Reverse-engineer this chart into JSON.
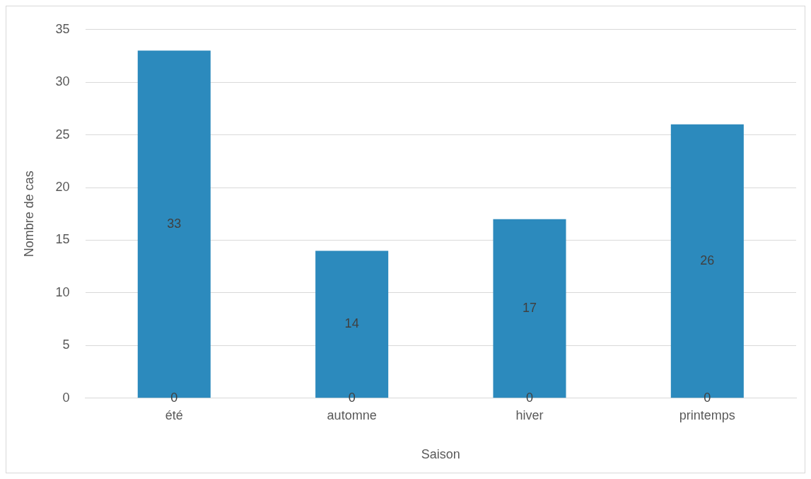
{
  "chart_data": {
    "type": "bar",
    "xlabel": "Saison",
    "ylabel": "Nombre de cas",
    "categories": [
      "été",
      "automne",
      "hiver",
      "printemps"
    ],
    "series": [
      {
        "color": "#0e80b5",
        "values": [
          0,
          0,
          0,
          0
        ]
      },
      {
        "color": "#2c8abd",
        "values": [
          33,
          14,
          17,
          26
        ]
      }
    ],
    "data_labels": true,
    "ylim": [
      0,
      35
    ],
    "yticks": [
      0,
      5,
      10,
      15,
      20,
      25,
      30,
      35
    ],
    "grid": "y",
    "legend": false
  }
}
